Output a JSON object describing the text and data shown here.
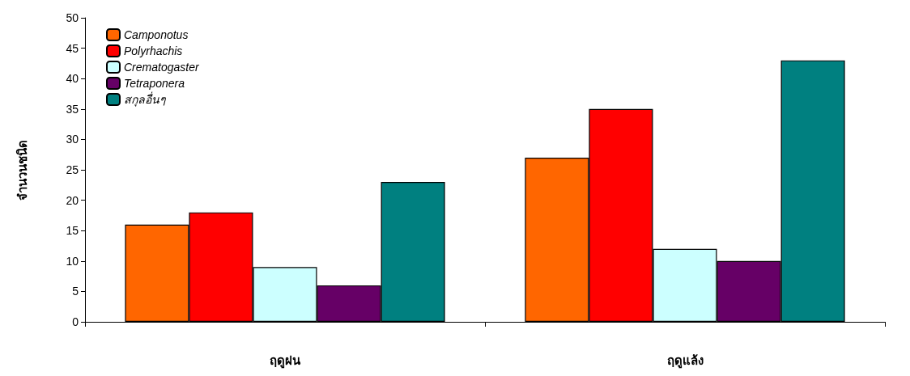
{
  "chart_data": {
    "type": "bar",
    "ylabel": "จำนวนชนิด",
    "categories": [
      "ฤดูฝน",
      "ฤดูแล้ง"
    ],
    "series": [
      {
        "name": "Camponotus",
        "color": "#ff6600",
        "values": [
          16,
          27
        ]
      },
      {
        "name": "Polyrhachis",
        "color": "#ff0000",
        "values": [
          18,
          35
        ]
      },
      {
        "name": "Crematogaster",
        "color": "#ccffff",
        "values": [
          9,
          12
        ]
      },
      {
        "name": "Tetraponera",
        "color": "#660066",
        "values": [
          6,
          10
        ]
      },
      {
        "name": "สกุลอื่นๆ",
        "color": "#008080",
        "values": [
          23,
          43
        ]
      }
    ],
    "ylim": [
      0,
      50
    ],
    "yticks": [
      0,
      5,
      10,
      15,
      20,
      25,
      30,
      35,
      40,
      45,
      50
    ],
    "grid": false,
    "legend": "top left"
  }
}
